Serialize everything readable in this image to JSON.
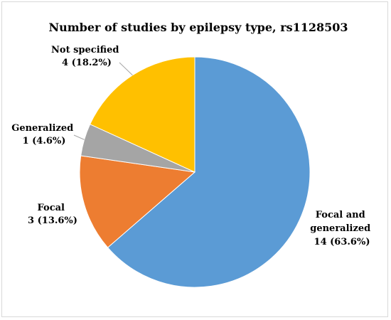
{
  "chart_data": {
    "type": "pie",
    "title": "Number of studies by epilepsy type, rs1128503",
    "slices": [
      {
        "label": "Focal and generalized",
        "value": 14,
        "percent": "63.6%",
        "color": "#5B9BD5"
      },
      {
        "label": "Focal",
        "value": 3,
        "percent": "13.6%",
        "color": "#ED7D31"
      },
      {
        "label": "Generalized",
        "value": 1,
        "percent": "4.6%",
        "color": "#A5A5A5"
      },
      {
        "label": "Not specified",
        "value": 4,
        "percent": "18.2%",
        "color": "#FFC000"
      }
    ],
    "data_labels": [
      {
        "lines": [
          "Focal and",
          "generalized",
          "14 (63.6%)"
        ]
      },
      {
        "lines": [
          "Focal",
          "3 (13.6%)"
        ]
      },
      {
        "lines": [
          "Generalized",
          "1 (4.6%)"
        ]
      },
      {
        "lines": [
          "Not specified",
          "4 (18.2%)"
        ]
      }
    ]
  }
}
